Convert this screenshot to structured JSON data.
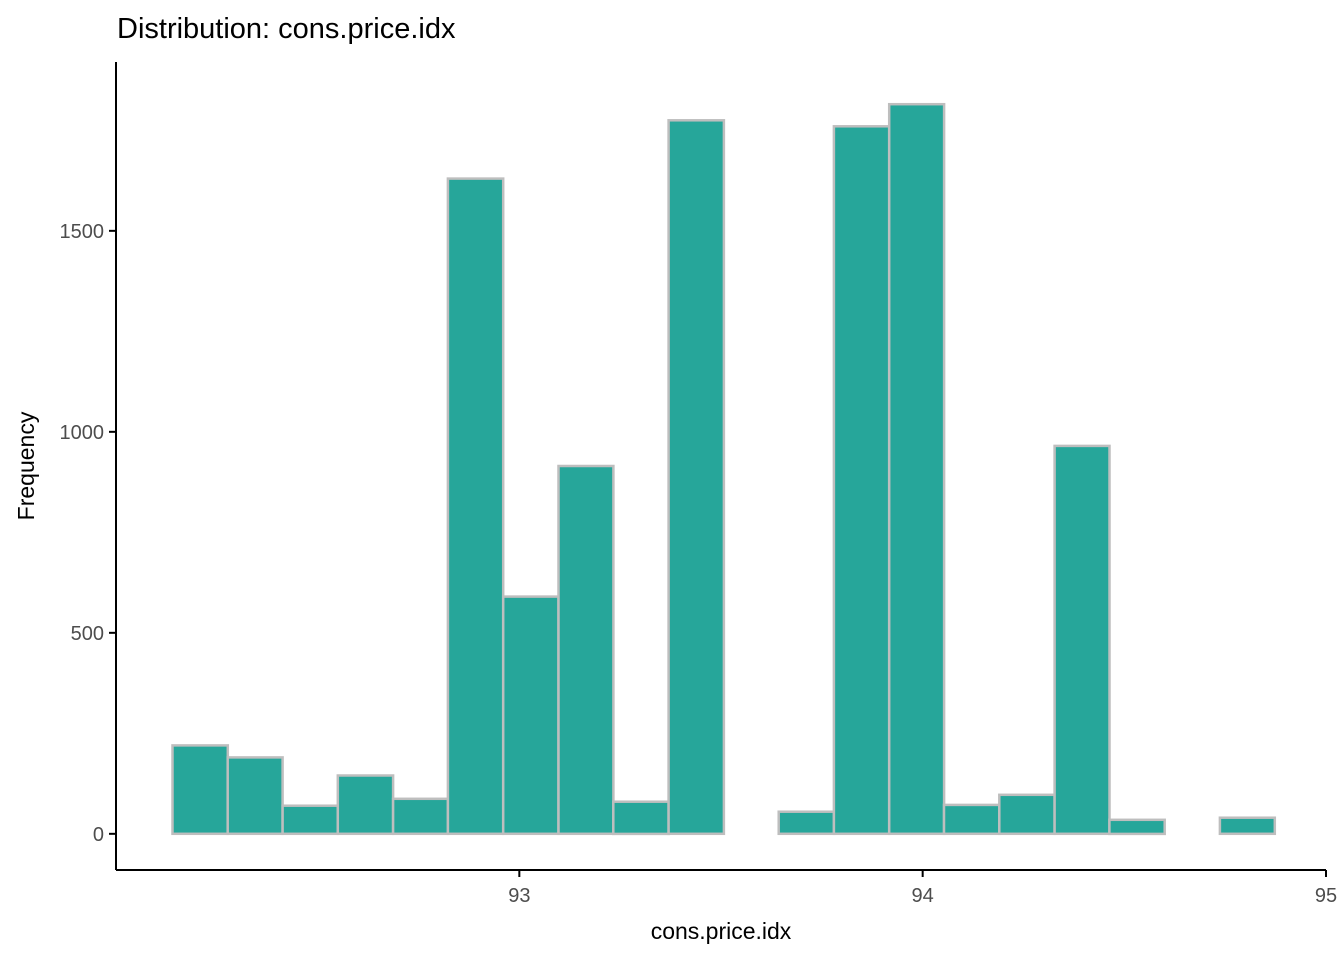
{
  "chart_data": {
    "type": "bar",
    "title": "Distribution: cons.price.idx",
    "xlabel": "cons.price.idx",
    "ylabel": "Frequency",
    "xlim": [
      92.0,
      95.0
    ],
    "ylim": [
      -90,
      1920
    ],
    "x_ticks": [
      93,
      94,
      95
    ],
    "y_ticks": [
      0,
      500,
      1000,
      1500
    ],
    "bin_width": 0.1367,
    "bins": [
      {
        "x0": 92.14,
        "x1": 92.277,
        "count": 220
      },
      {
        "x0": 92.277,
        "x1": 92.413,
        "count": 190
      },
      {
        "x0": 92.413,
        "x1": 92.55,
        "count": 70
      },
      {
        "x0": 92.55,
        "x1": 92.687,
        "count": 145
      },
      {
        "x0": 92.687,
        "x1": 92.823,
        "count": 87
      },
      {
        "x0": 92.823,
        "x1": 92.96,
        "count": 1630
      },
      {
        "x0": 92.96,
        "x1": 93.097,
        "count": 590
      },
      {
        "x0": 93.097,
        "x1": 93.233,
        "count": 915
      },
      {
        "x0": 93.233,
        "x1": 93.37,
        "count": 80
      },
      {
        "x0": 93.37,
        "x1": 93.507,
        "count": 1775
      },
      {
        "x0": 93.507,
        "x1": 93.643,
        "count": 0
      },
      {
        "x0": 93.643,
        "x1": 93.78,
        "count": 55
      },
      {
        "x0": 93.78,
        "x1": 93.917,
        "count": 1760
      },
      {
        "x0": 93.917,
        "x1": 94.053,
        "count": 1815
      },
      {
        "x0": 94.053,
        "x1": 94.19,
        "count": 72
      },
      {
        "x0": 94.19,
        "x1": 94.327,
        "count": 97
      },
      {
        "x0": 94.327,
        "x1": 94.463,
        "count": 965
      },
      {
        "x0": 94.463,
        "x1": 94.6,
        "count": 35
      },
      {
        "x0": 94.6,
        "x1": 94.737,
        "count": 0
      },
      {
        "x0": 94.737,
        "x1": 94.873,
        "count": 40
      }
    ],
    "colors": {
      "fill": "#26a69a",
      "outline": "#bebebe"
    },
    "grid": false,
    "legend": "none"
  }
}
